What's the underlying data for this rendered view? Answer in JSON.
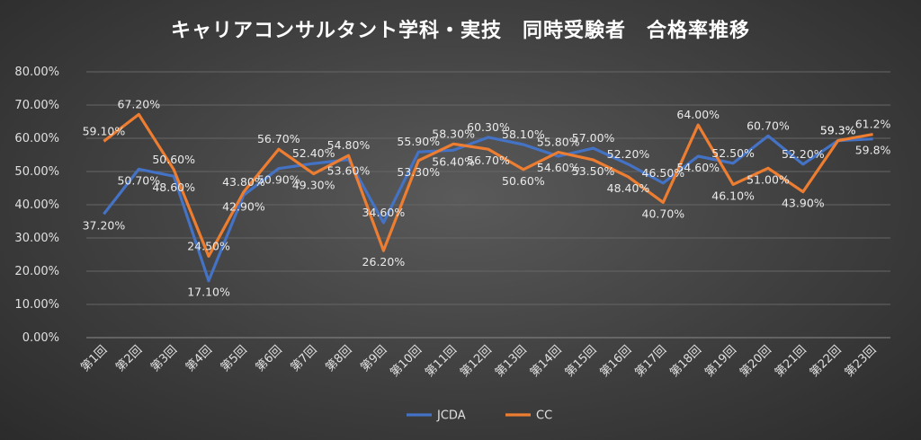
{
  "chart_data": {
    "type": "line",
    "title": "キャリアコンサルタント学科・実技　同時受験者　合格率推移",
    "categories": [
      "第1回",
      "第2回",
      "第3回",
      "第4回",
      "第5回",
      "第6回",
      "第7回",
      "第8回",
      "第9回",
      "第10回",
      "第11回",
      "第12回",
      "第13回",
      "第14回",
      "第15回",
      "第16回",
      "第17回",
      "第18回",
      "第19回",
      "第20回",
      "第21回",
      "第22回",
      "第23回"
    ],
    "series": [
      {
        "name": "JCDA",
        "color": "#4472c4",
        "values": [
          37.2,
          50.7,
          48.6,
          17.1,
          42.9,
          50.9,
          52.4,
          53.6,
          34.6,
          55.9,
          56.4,
          60.3,
          58.1,
          54.6,
          57.0,
          52.2,
          46.5,
          54.6,
          52.5,
          60.7,
          52.2,
          59.3,
          59.8
        ],
        "labels": [
          "37.20%",
          "50.70%",
          "48.60%",
          "17.10%",
          "42.90%",
          "50.90%",
          "52.40%",
          "53.60%",
          "34.60%",
          "55.90%",
          "56.40%",
          "60.30%",
          "58.10%",
          "54.60%",
          "57.00%",
          "52.20%",
          "46.50%",
          "54.60%",
          "52.50%",
          "60.70%",
          "52.20%",
          "59.3%",
          "59.8%"
        ]
      },
      {
        "name": "CC",
        "color": "#ed7d31",
        "values": [
          59.1,
          67.2,
          50.6,
          24.5,
          43.8,
          56.7,
          49.3,
          54.8,
          26.2,
          53.3,
          58.3,
          56.7,
          50.6,
          55.8,
          53.5,
          48.4,
          40.7,
          64.0,
          46.1,
          51.0,
          43.9,
          59.3,
          61.2
        ],
        "labels": [
          "59.10%",
          "67.20%",
          "50.60%",
          "24.50%",
          "43.80%",
          "56.70%",
          "49.30%",
          "54.80%",
          "26.20%",
          "53.30%",
          "58.30%",
          "56.70%",
          "50.60%",
          "55.80%",
          "53.50%",
          "48.40%",
          "40.70%",
          "64.00%",
          "46.10%",
          "51.00%",
          "43.90%",
          "59.3%",
          "61.2%"
        ]
      }
    ],
    "yticks": [
      "0.00%",
      "10.00%",
      "20.00%",
      "30.00%",
      "40.00%",
      "50.00%",
      "60.00%",
      "70.00%",
      "80.00%"
    ],
    "ylim": [
      0,
      80
    ],
    "grid": true,
    "legend_position": "bottom"
  }
}
